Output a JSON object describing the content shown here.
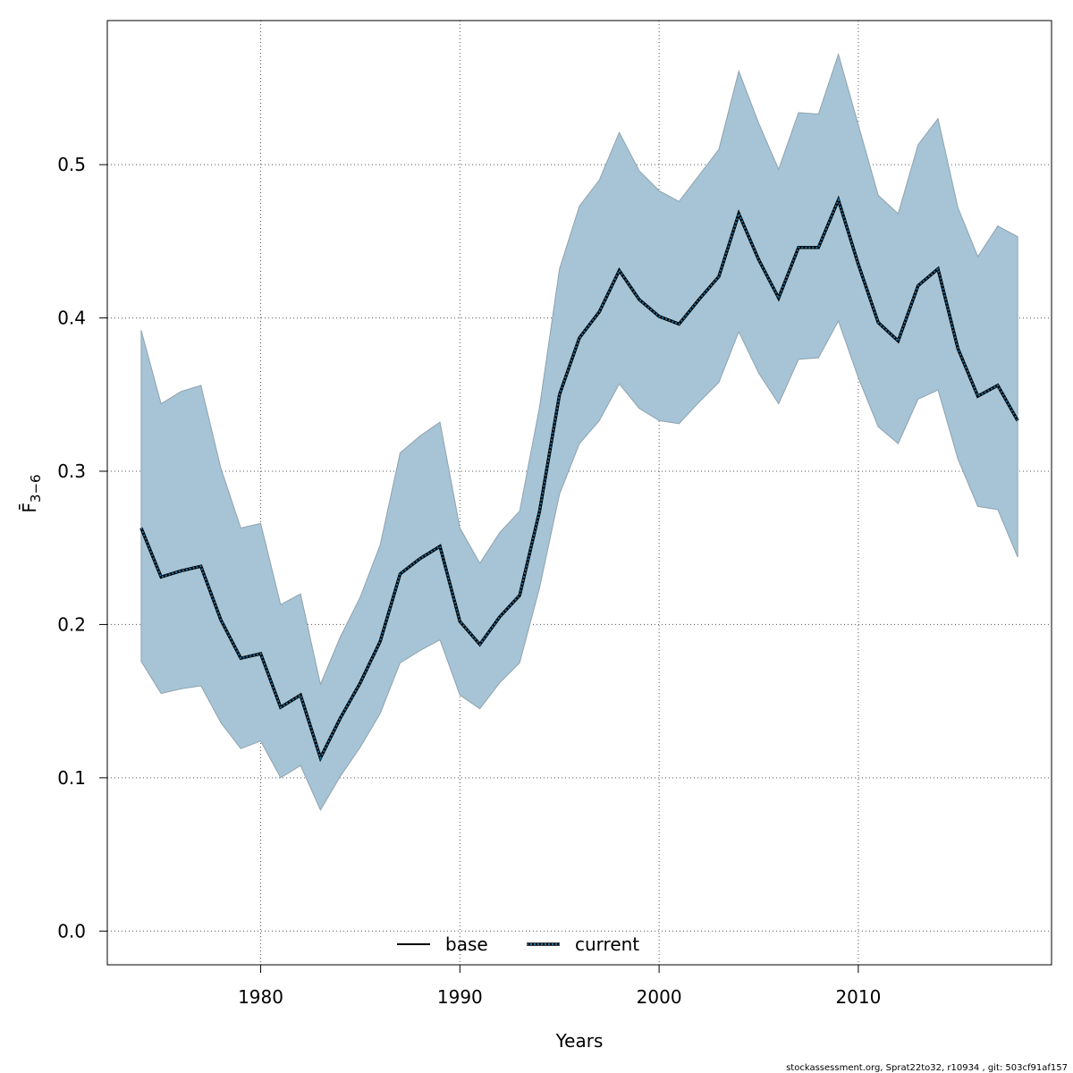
{
  "chart_data": {
    "type": "line",
    "title": "",
    "xlabel": "Years",
    "ylabel": "F̄",
    "ylabel_subscript": "3−6",
    "xlim": [
      1972.3,
      2019.7
    ],
    "ylim": [
      -0.022,
      0.594
    ],
    "xticks": [
      1980,
      1990,
      2000,
      2010
    ],
    "yticks": [
      0.0,
      0.1,
      0.2,
      0.3,
      0.4,
      0.5
    ],
    "ytick_labels": [
      "0.0",
      "0.1",
      "0.2",
      "0.3",
      "0.4",
      "0.5"
    ],
    "grid": true,
    "legend_position": "bottom-center",
    "colors": {
      "band": "#a6c4d5",
      "band_edge": "#8fa3b0",
      "base": "#000000",
      "current_outer": "#000000",
      "current_inner": "#1e6f9f"
    },
    "x": [
      1974,
      1975,
      1976,
      1977,
      1978,
      1979,
      1980,
      1981,
      1982,
      1983,
      1984,
      1985,
      1986,
      1987,
      1988,
      1989,
      1990,
      1991,
      1992,
      1993,
      1994,
      1995,
      1996,
      1997,
      1998,
      1999,
      2000,
      2001,
      2002,
      2003,
      2004,
      2005,
      2006,
      2007,
      2008,
      2009,
      2010,
      2011,
      2012,
      2013,
      2014,
      2015,
      2016,
      2017,
      2018
    ],
    "series": [
      {
        "name": "base",
        "style": "solid",
        "values": [
          0.263,
          0.231,
          0.235,
          0.238,
          0.203,
          0.178,
          0.181,
          0.146,
          0.154,
          0.113,
          0.139,
          0.162,
          0.189,
          0.233,
          0.243,
          0.251,
          0.202,
          0.187,
          0.205,
          0.219,
          0.274,
          0.35,
          0.387,
          0.404,
          0.431,
          0.412,
          0.401,
          0.396,
          0.412,
          0.427,
          0.468,
          0.438,
          0.413,
          0.446,
          0.446,
          0.477,
          0.435,
          0.397,
          0.385,
          0.421,
          0.432,
          0.38,
          0.349,
          0.356,
          0.333
        ]
      },
      {
        "name": "current",
        "style": "dotted",
        "values": [
          0.263,
          0.231,
          0.235,
          0.238,
          0.203,
          0.178,
          0.181,
          0.146,
          0.154,
          0.113,
          0.139,
          0.162,
          0.189,
          0.233,
          0.243,
          0.251,
          0.202,
          0.187,
          0.205,
          0.219,
          0.274,
          0.35,
          0.387,
          0.404,
          0.431,
          0.412,
          0.401,
          0.396,
          0.412,
          0.427,
          0.468,
          0.438,
          0.413,
          0.446,
          0.446,
          0.477,
          0.435,
          0.397,
          0.385,
          0.421,
          0.432,
          0.38,
          0.349,
          0.356,
          0.333
        ]
      }
    ],
    "ci_upper": [
      0.392,
      0.344,
      0.352,
      0.356,
      0.302,
      0.263,
      0.266,
      0.213,
      0.22,
      0.161,
      0.192,
      0.218,
      0.252,
      0.312,
      0.323,
      0.332,
      0.263,
      0.24,
      0.26,
      0.274,
      0.342,
      0.432,
      0.473,
      0.49,
      0.521,
      0.496,
      0.483,
      0.476,
      0.493,
      0.51,
      0.561,
      0.527,
      0.497,
      0.534,
      0.533,
      0.572,
      0.526,
      0.48,
      0.468,
      0.513,
      0.53,
      0.472,
      0.44,
      0.46,
      0.453
    ],
    "ci_lower": [
      0.176,
      0.155,
      0.158,
      0.16,
      0.136,
      0.119,
      0.124,
      0.1,
      0.108,
      0.079,
      0.101,
      0.12,
      0.142,
      0.175,
      0.183,
      0.19,
      0.154,
      0.145,
      0.162,
      0.175,
      0.224,
      0.285,
      0.318,
      0.333,
      0.357,
      0.341,
      0.333,
      0.331,
      0.345,
      0.358,
      0.391,
      0.364,
      0.344,
      0.373,
      0.374,
      0.398,
      0.361,
      0.329,
      0.318,
      0.347,
      0.353,
      0.308,
      0.277,
      0.275,
      0.244
    ]
  },
  "footer": "stockassessment.org, Sprat22to32, r10934 , git: 503cf91af157"
}
